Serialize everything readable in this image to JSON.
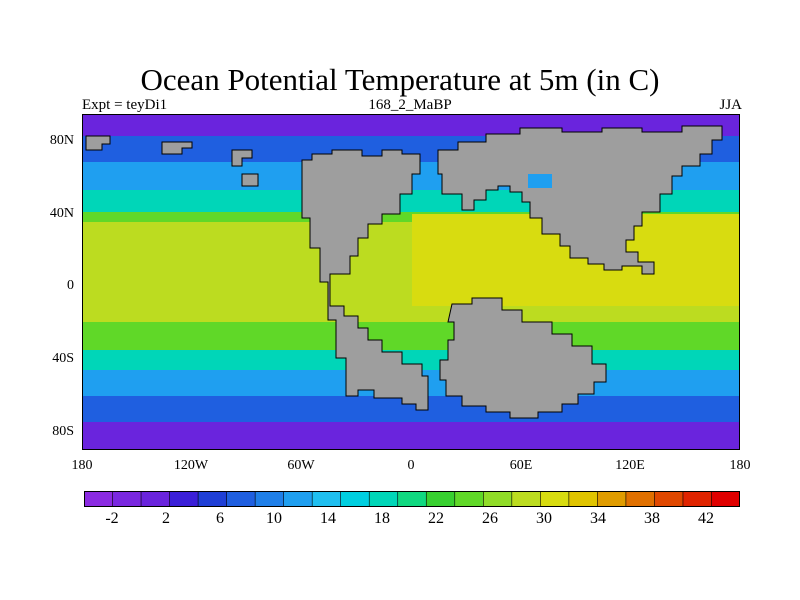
{
  "title": "Ocean Potential Temperature at 5m (in C)",
  "subtitle_left": "Expt = teyDi1",
  "subtitle_center": "168_2_MaBP",
  "subtitle_right": "JJA",
  "y_ticks": [
    "80N",
    "40N",
    "0",
    "40S",
    "80S"
  ],
  "x_ticks": [
    "180",
    "120W",
    "60W",
    "0",
    "60E",
    "120E",
    "180"
  ],
  "colorbar": {
    "labels": [
      "-2",
      "2",
      "6",
      "10",
      "14",
      "18",
      "22",
      "26",
      "30",
      "34",
      "38",
      "42"
    ],
    "colors": [
      "#8b2be2",
      "#7a28e0",
      "#6a24dd",
      "#3b1fd8",
      "#1f3fd6",
      "#1f5fe0",
      "#1f7fe8",
      "#1f9ff0",
      "#1fbff0",
      "#00cfe0",
      "#00d6b8",
      "#10d880",
      "#38d030",
      "#60d828",
      "#90dc28",
      "#bcdc20",
      "#d8dc10",
      "#e0c400",
      "#e09c00",
      "#e07000",
      "#e04800",
      "#e02400",
      "#e00000"
    ]
  },
  "map_colors": {
    "land": "#9e9e9e",
    "ocean_polar": "#6a24dd",
    "ocean_cold": "#1f5fe0",
    "ocean_cool": "#1f9ff0",
    "ocean_mild": "#00d6b8",
    "ocean_warm": "#60d828",
    "ocean_hot": "#bcdc20",
    "ocean_tropic": "#d8dc10",
    "ocean_hotspot": "#e09c00"
  }
}
